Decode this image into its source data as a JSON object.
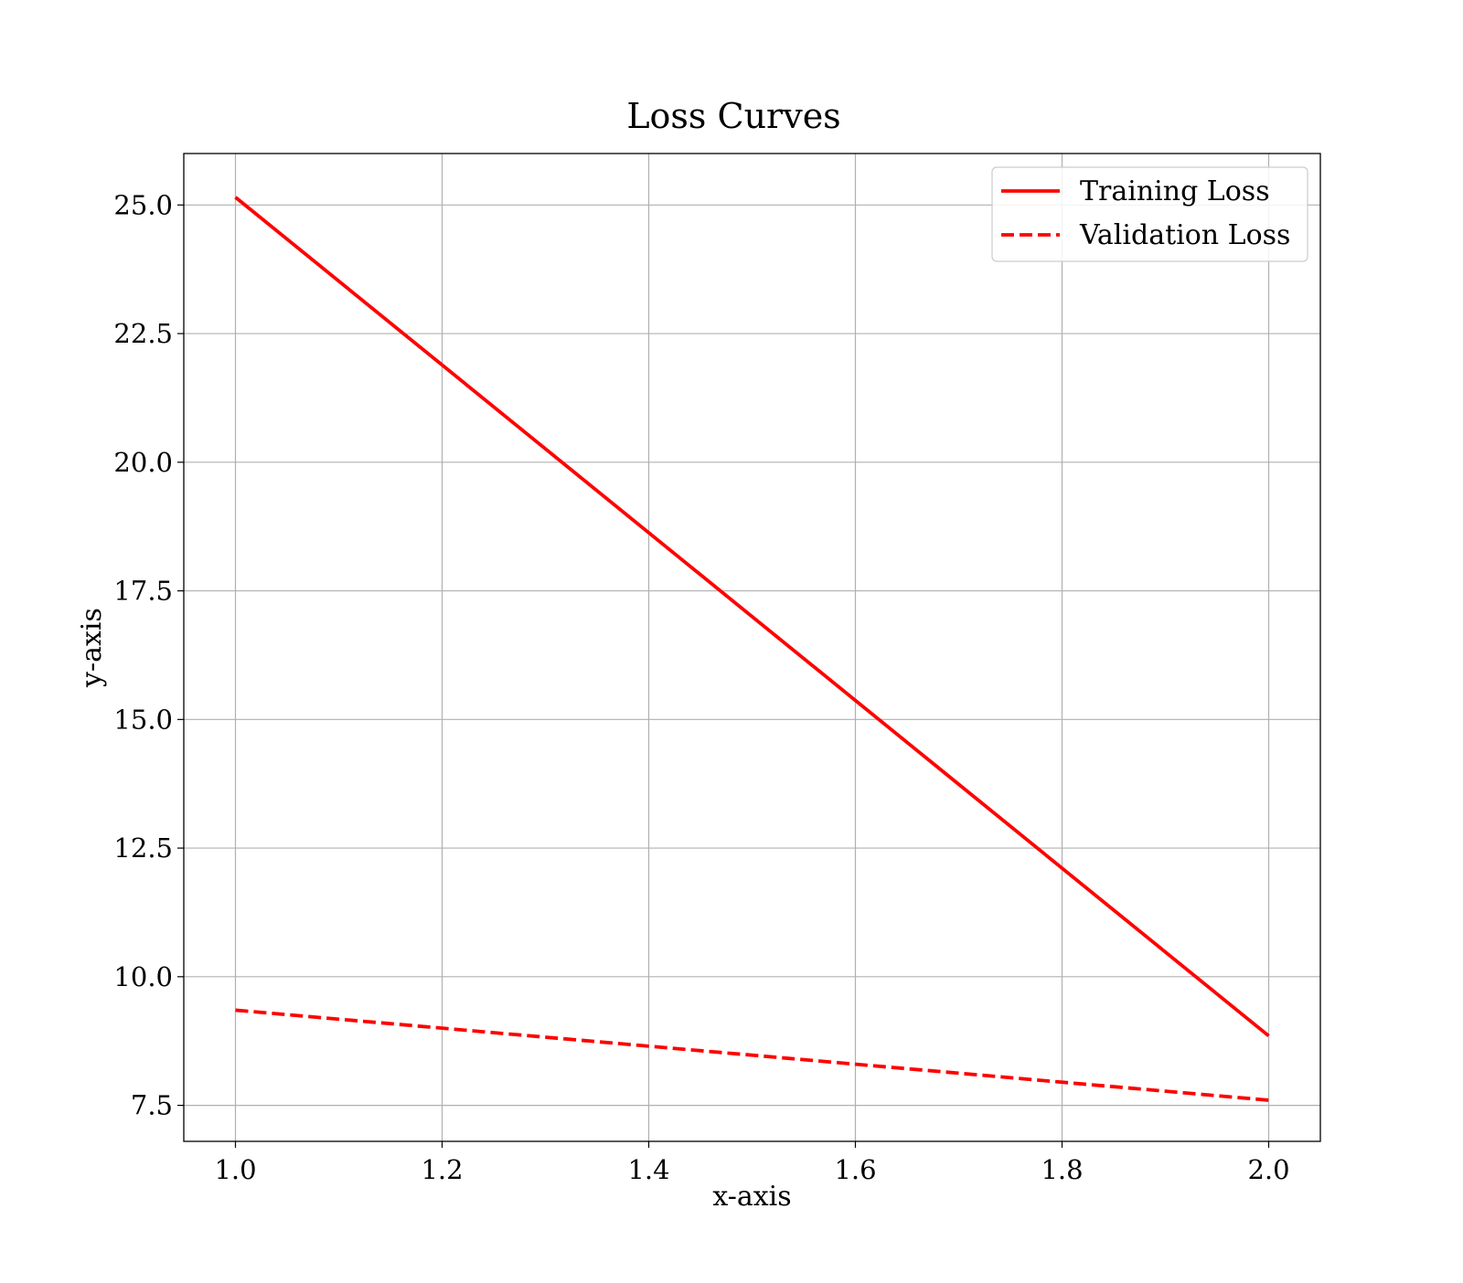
{
  "chart_data": {
    "type": "line",
    "title": "Loss Curves",
    "xlabel": "x-axis",
    "ylabel": "y-axis",
    "x": [
      1.0,
      2.0
    ],
    "series": [
      {
        "name": "Training Loss",
        "values": [
          25.15,
          8.85
        ],
        "color": "#ff0000",
        "style": "solid"
      },
      {
        "name": "Validation Loss",
        "values": [
          9.35,
          7.6
        ],
        "color": "#ff0000",
        "style": "dashed"
      }
    ],
    "xlim": [
      0.95,
      2.05
    ],
    "ylim": [
      6.8,
      26.0
    ],
    "xticks": [
      "1.0",
      "1.2",
      "1.4",
      "1.6",
      "1.8",
      "2.0"
    ],
    "yticks": [
      "7.5",
      "10.0",
      "12.5",
      "15.0",
      "17.5",
      "20.0",
      "22.5",
      "25.0"
    ],
    "grid": true,
    "legend_position": "top-right"
  }
}
